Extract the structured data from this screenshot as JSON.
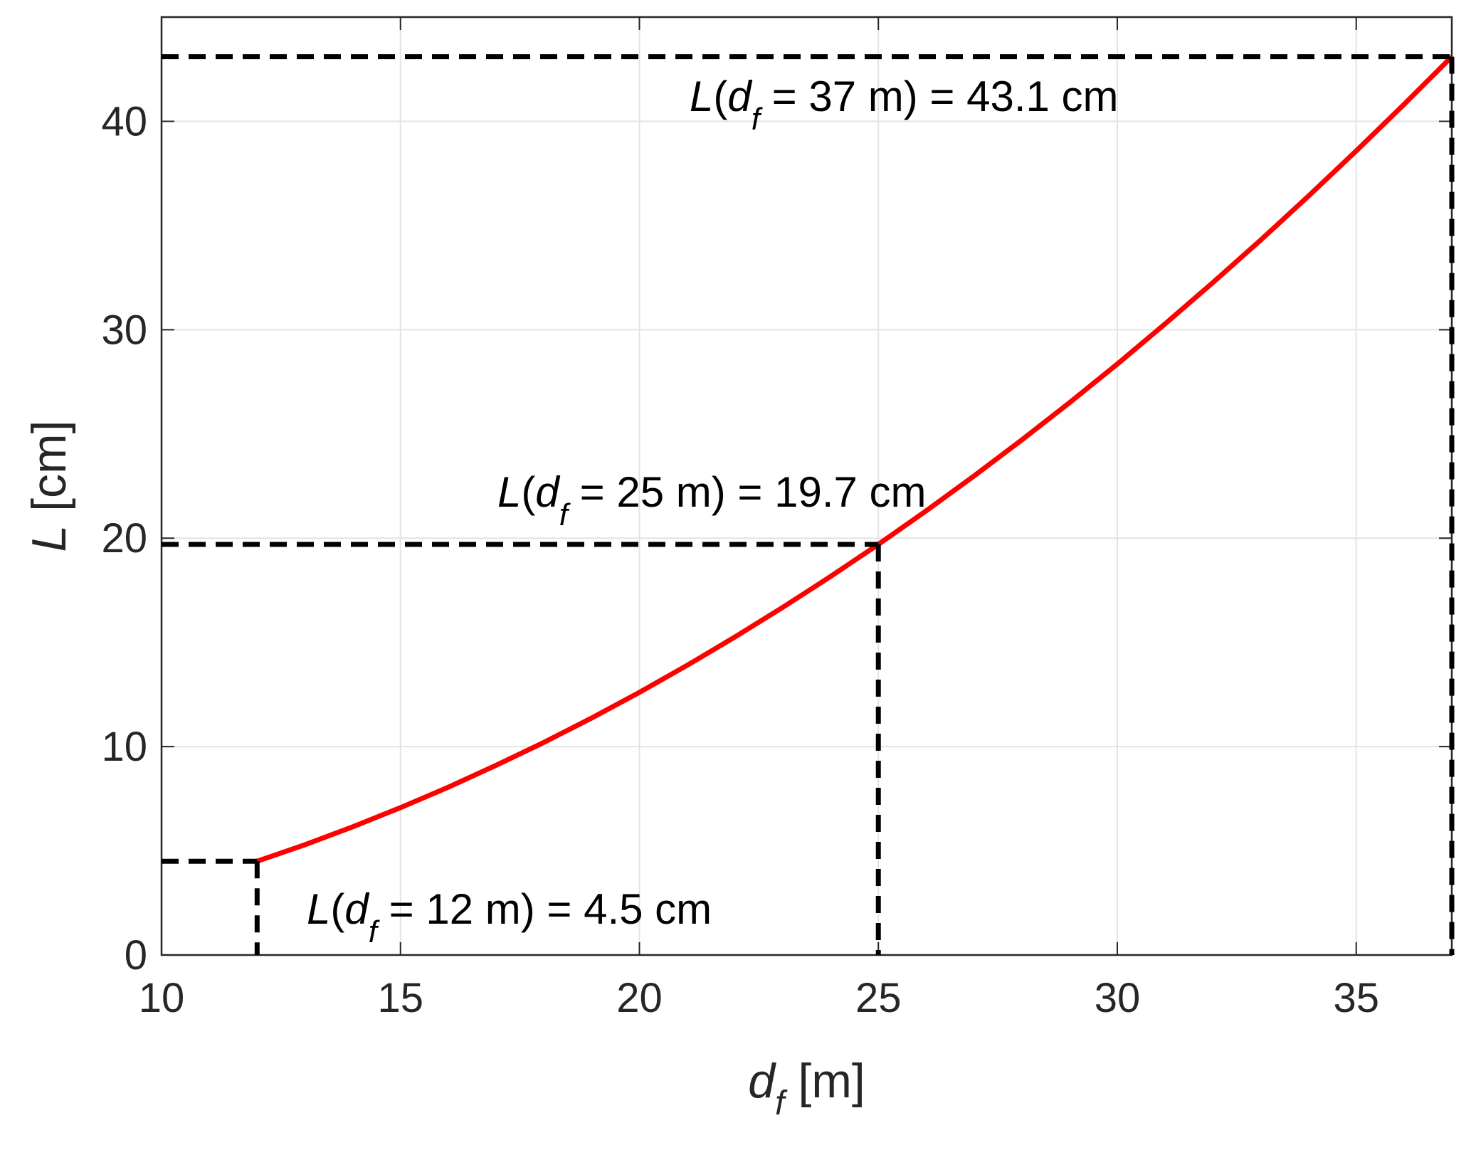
{
  "chart_data": {
    "type": "line",
    "x": [
      12,
      13,
      14,
      15,
      16,
      17,
      18,
      19,
      20,
      21,
      22,
      23,
      24,
      25,
      26,
      27,
      28,
      29,
      30,
      31,
      32,
      33,
      34,
      35,
      36,
      37
    ],
    "series": [
      {
        "color": "#ff0000",
        "values": [
          4.5,
          5.29,
          6.15,
          7.07,
          8.05,
          9.1,
          10.2,
          11.37,
          12.6,
          13.9,
          15.26,
          16.68,
          18.16,
          19.7,
          21.31,
          22.98,
          24.71,
          26.5,
          28.35,
          30.28,
          32.26,
          34.3,
          36.41,
          38.58,
          40.81,
          43.1
        ]
      }
    ],
    "markers": {
      "x": [
        12,
        25,
        37
      ],
      "y": [
        4.5,
        19.7,
        43.1
      ],
      "color": "#000000"
    },
    "annotations": [
      {
        "parts": [
          "L",
          "(",
          "d",
          "f",
          " = 37 m) = 43.1 cm"
        ]
      },
      {
        "parts": [
          "L",
          "(",
          "d",
          "f",
          " = 25 m) = 19.7 cm"
        ]
      },
      {
        "parts": [
          "L",
          "(",
          "d",
          "f",
          " = 12 m) = 4.5 cm"
        ]
      }
    ],
    "x_label": [
      "d",
      "f",
      " [m]"
    ],
    "y_label": [
      "L",
      " [cm]"
    ],
    "xlim": [
      10,
      37
    ],
    "xticks": [
      10,
      15,
      20,
      25,
      30,
      35
    ],
    "ylim": [
      0,
      45
    ],
    "yticks": [
      0,
      10,
      20,
      30,
      40
    ],
    "grid": true
  }
}
